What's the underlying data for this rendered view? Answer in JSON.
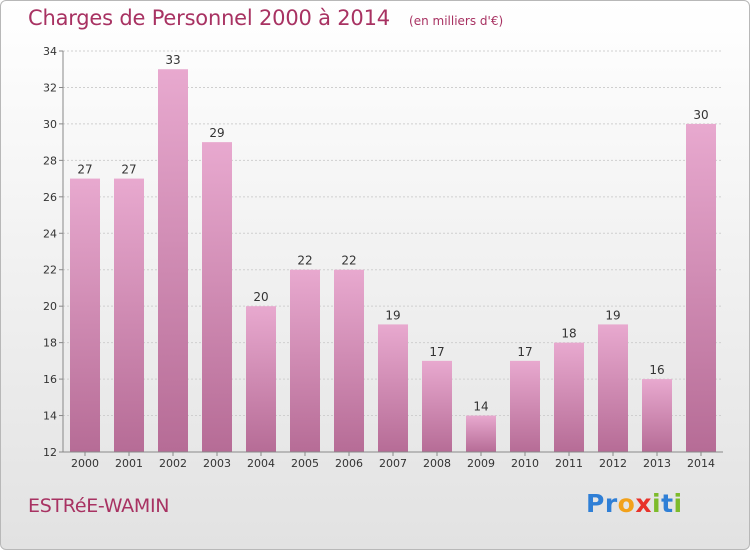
{
  "header": {
    "title": "Charges de Personnel 2000 à 2014",
    "subtitle": "(en milliers d'€)"
  },
  "footer": {
    "commune": "ESTRéE-WAMIN",
    "logo_letters": [
      {
        "ch": "P",
        "color": "#2f7fd6"
      },
      {
        "ch": "r",
        "color": "#2f7fd6"
      },
      {
        "ch": "o",
        "color": "#f2a11a"
      },
      {
        "ch": "x",
        "color": "#e8322a"
      },
      {
        "ch": "i",
        "color": "#7dbb2b"
      },
      {
        "ch": "t",
        "color": "#2f7fd6"
      },
      {
        "ch": "i",
        "color": "#7dbb2b"
      }
    ]
  },
  "colors": {
    "title": "#a83262",
    "bar_top": "#e8a9cf",
    "bar_bottom": "#b66c96",
    "grid": "#cfcfcf",
    "axis": "#888888"
  },
  "chart_data": {
    "type": "bar",
    "categories": [
      "2000",
      "2001",
      "2002",
      "2003",
      "2004",
      "2005",
      "2006",
      "2007",
      "2008",
      "2009",
      "2010",
      "2011",
      "2012",
      "2013",
      "2014"
    ],
    "values": [
      27,
      27,
      33,
      29,
      20,
      22,
      22,
      19,
      17,
      14,
      17,
      18,
      19,
      16,
      30
    ],
    "ylim": [
      12,
      34
    ],
    "yticks": [
      12,
      14,
      16,
      18,
      20,
      22,
      24,
      26,
      28,
      30,
      32,
      34
    ],
    "grid": true,
    "data_labels": true
  }
}
